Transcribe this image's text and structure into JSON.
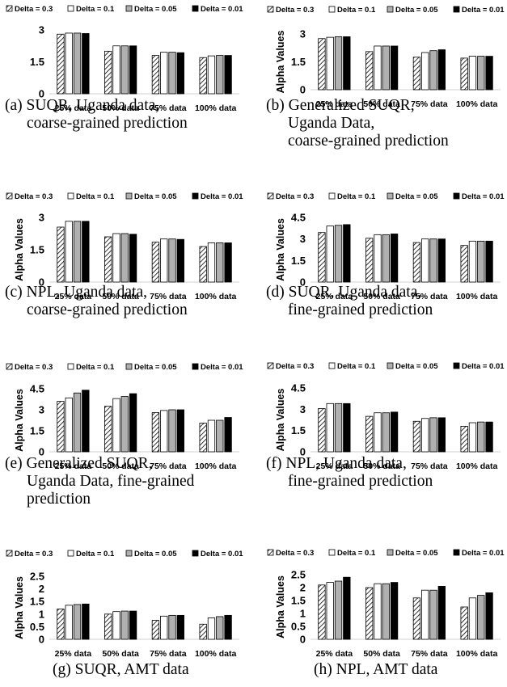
{
  "colors": {
    "delta_0_3": "hatched",
    "delta_0_1": "#ffffff",
    "delta_0_05": "#b0b0b0",
    "delta_0_01": "#000000"
  },
  "chart_data": [
    {
      "type": "bar",
      "caption": [
        "(a) SUQR, Uganda data,",
        "coarse-grained prediction"
      ],
      "ylabel": "",
      "ylim": [
        0,
        3
      ],
      "yticks": [
        "0",
        "1.5",
        "3"
      ],
      "categories": [
        "25% data",
        "50% data",
        "75% data",
        "100% data"
      ],
      "series": [
        {
          "name": "Delta = 0.3",
          "values": [
            2.8,
            2.0,
            1.8,
            1.7
          ]
        },
        {
          "name": "Delta = 0.1",
          "values": [
            2.85,
            2.25,
            1.95,
            1.78
          ]
        },
        {
          "name": "Delta = 0.05",
          "values": [
            2.85,
            2.25,
            1.95,
            1.8
          ]
        },
        {
          "name": "Delta = 0.01",
          "values": [
            2.83,
            2.25,
            1.93,
            1.8
          ]
        }
      ]
    },
    {
      "type": "bar",
      "caption": [
        "(b) Generalized SUQR,",
        "Uganda Data,",
        "coarse-grained prediction"
      ],
      "ylabel": "Alpha Values",
      "ylim": [
        0,
        3
      ],
      "yticks": [
        "0",
        "1.5",
        "3"
      ],
      "categories": [
        "25% data",
        "50% data",
        "75% data",
        "100% data"
      ],
      "series": [
        {
          "name": "Delta = 0.3",
          "values": [
            2.75,
            2.05,
            1.75,
            1.7
          ]
        },
        {
          "name": "Delta = 0.1",
          "values": [
            2.82,
            2.35,
            2.0,
            1.8
          ]
        },
        {
          "name": "Delta = 0.05",
          "values": [
            2.85,
            2.35,
            2.1,
            1.8
          ]
        },
        {
          "name": "Delta = 0.01",
          "values": [
            2.85,
            2.35,
            2.15,
            1.8
          ]
        }
      ]
    },
    {
      "type": "bar",
      "caption": [
        "(c) NPL, Uganda data,",
        "coarse-grained prediction"
      ],
      "ylabel": "Alpha Values",
      "ylim": [
        0,
        3
      ],
      "yticks": [
        "0",
        "1.5",
        "3"
      ],
      "categories": [
        "25% data",
        "50% data",
        "75% data",
        "100% data"
      ],
      "series": [
        {
          "name": "Delta = 0.3",
          "values": [
            2.55,
            2.1,
            1.85,
            1.65
          ]
        },
        {
          "name": "Delta = 0.1",
          "values": [
            2.82,
            2.25,
            2.0,
            1.82
          ]
        },
        {
          "name": "Delta = 0.05",
          "values": [
            2.82,
            2.25,
            2.0,
            1.82
          ]
        },
        {
          "name": "Delta = 0.01",
          "values": [
            2.82,
            2.22,
            1.98,
            1.82
          ]
        }
      ]
    },
    {
      "type": "bar",
      "caption": [
        "(d) SUQR, Uganda data,",
        "fine-grained prediction"
      ],
      "ylabel": "Alpha Values",
      "ylim": [
        0,
        4.5
      ],
      "yticks": [
        "0",
        "1.5",
        "3",
        "4.5"
      ],
      "categories": [
        "25% data",
        "50% data",
        "75% data",
        "100% data"
      ],
      "series": [
        {
          "name": "Delta = 0.3",
          "values": [
            3.45,
            3.05,
            2.75,
            2.55
          ]
        },
        {
          "name": "Delta = 0.1",
          "values": [
            3.9,
            3.3,
            3.0,
            2.85
          ]
        },
        {
          "name": "Delta = 0.05",
          "values": [
            3.95,
            3.3,
            3.0,
            2.85
          ]
        },
        {
          "name": "Delta = 0.01",
          "values": [
            4.0,
            3.35,
            3.0,
            2.85
          ]
        }
      ]
    },
    {
      "type": "bar",
      "caption": [
        "(e) Generalized SUQR,",
        "Uganda Data, fine-grained",
        "prediction"
      ],
      "ylabel": "Alpha Values",
      "ylim": [
        0,
        4.5
      ],
      "yticks": [
        "0",
        "1.5",
        "3",
        "4.5"
      ],
      "categories": [
        "25% data",
        "50% data",
        "75% data",
        "100% data"
      ],
      "series": [
        {
          "name": "Delta = 0.3",
          "values": [
            3.6,
            3.25,
            2.8,
            2.05
          ]
        },
        {
          "name": "Delta = 0.1",
          "values": [
            3.85,
            3.8,
            2.95,
            2.25
          ]
        },
        {
          "name": "Delta = 0.05",
          "values": [
            4.2,
            3.95,
            3.0,
            2.25
          ]
        },
        {
          "name": "Delta = 0.01",
          "values": [
            4.4,
            4.15,
            3.0,
            2.45
          ]
        }
      ]
    },
    {
      "type": "bar",
      "caption": [
        "(f) NPL, Uganda data,",
        "fine-grained prediction"
      ],
      "ylabel": "Alpha Values",
      "ylim": [
        0,
        4.5
      ],
      "yticks": [
        "0",
        "1.5",
        "3",
        "4.5"
      ],
      "categories": [
        "25% data",
        "50% data",
        "75% data",
        "100% data"
      ],
      "series": [
        {
          "name": "Delta = 0.3",
          "values": [
            3.05,
            2.5,
            2.15,
            1.8
          ]
        },
        {
          "name": "Delta = 0.1",
          "values": [
            3.4,
            2.75,
            2.35,
            2.05
          ]
        },
        {
          "name": "Delta = 0.05",
          "values": [
            3.4,
            2.75,
            2.4,
            2.1
          ]
        },
        {
          "name": "Delta = 0.01",
          "values": [
            3.4,
            2.8,
            2.4,
            2.1
          ]
        }
      ]
    },
    {
      "type": "bar",
      "caption": [
        "(g) SUQR, AMT data"
      ],
      "ylabel": "Alpha Values",
      "ylim": [
        0,
        2.5
      ],
      "yticks": [
        "0",
        "0.5",
        "1",
        "1.5",
        "2",
        "2.5"
      ],
      "categories": [
        "25% data",
        "50% data",
        "75% data",
        "100% data"
      ],
      "series": [
        {
          "name": "Delta = 0.3",
          "values": [
            1.2,
            1.0,
            0.75,
            0.6
          ]
        },
        {
          "name": "Delta = 0.1",
          "values": [
            1.35,
            1.1,
            0.92,
            0.85
          ]
        },
        {
          "name": "Delta = 0.05",
          "values": [
            1.38,
            1.12,
            0.95,
            0.9
          ]
        },
        {
          "name": "Delta = 0.01",
          "values": [
            1.4,
            1.12,
            0.95,
            0.95
          ]
        }
      ]
    },
    {
      "type": "bar",
      "caption": [
        "(h) NPL, AMT data"
      ],
      "ylabel": "Alpha Values",
      "ylim": [
        0,
        2.5
      ],
      "yticks": [
        "0",
        "0.5",
        "1",
        "1.5",
        "2",
        "2.5"
      ],
      "categories": [
        "25% data",
        "50% data",
        "75% data",
        "100% data"
      ],
      "series": [
        {
          "name": "Delta = 0.3",
          "values": [
            2.1,
            2.0,
            1.6,
            1.25
          ]
        },
        {
          "name": "Delta = 0.1",
          "values": [
            2.2,
            2.15,
            1.9,
            1.6
          ]
        },
        {
          "name": "Delta = 0.05",
          "values": [
            2.25,
            2.15,
            1.9,
            1.7
          ]
        },
        {
          "name": "Delta = 0.01",
          "values": [
            2.4,
            2.2,
            2.05,
            1.8
          ]
        }
      ]
    }
  ]
}
